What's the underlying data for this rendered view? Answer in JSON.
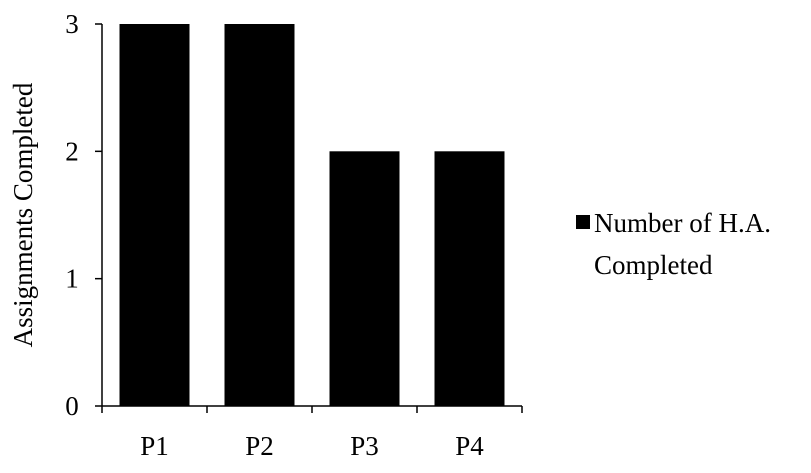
{
  "chart_data": {
    "type": "bar",
    "categories": [
      "P1",
      "P2",
      "P3",
      "P4"
    ],
    "series": [
      {
        "name": "Number of H.A. Completed",
        "values": [
          3,
          3,
          2,
          2
        ]
      }
    ],
    "xlabel": "",
    "ylabel": "Assignments Completed",
    "ylim": [
      0,
      3
    ],
    "yticks": [
      0,
      1,
      2,
      3
    ],
    "grid": false,
    "legend": {
      "placement": "right",
      "lines": [
        "Number of H.A.",
        "Completed"
      ]
    },
    "colors": {
      "bar": "#000000",
      "axis": "#000000"
    }
  }
}
